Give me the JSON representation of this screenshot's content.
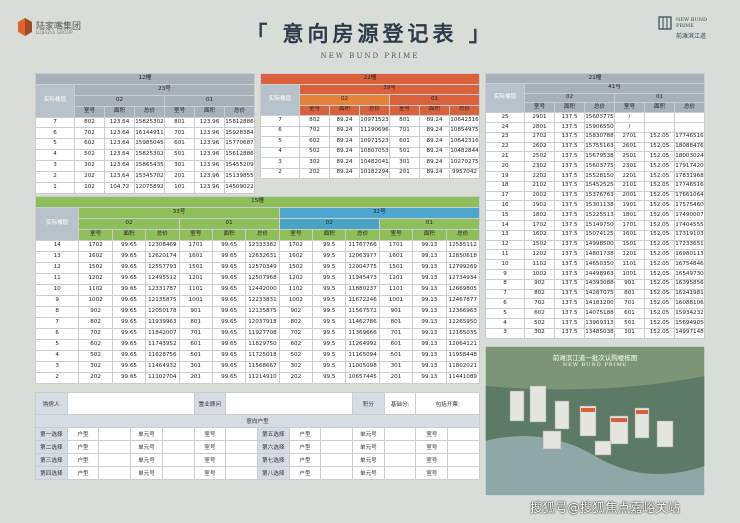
{
  "header": {
    "logo_cn": "陆家嘴集团",
    "logo_en": "LUJIAZUI GROUP",
    "title": "「 意向房源登记表 」",
    "subtitle": "NEW BUND PRIME",
    "brand_en": "NEW BUND PRIME",
    "brand_cn": "前滩滨江道"
  },
  "tables": [
    {
      "building": "12幢",
      "floor_label": "实际楼层",
      "units": [
        {
          "name": "23号",
          "groups": [
            "02",
            "01"
          ]
        }
      ],
      "columns": [
        "室号",
        "面积",
        "总价",
        "室号",
        "面积",
        "总价"
      ],
      "rows": [
        [
          7,
          802,
          123.64,
          15825302,
          801,
          123.96,
          15812886
        ],
        [
          6,
          702,
          123.64,
          16144911,
          701,
          123.96,
          15928384
        ],
        [
          5,
          602,
          123.64,
          15985045,
          601,
          123.96,
          15770687
        ],
        [
          4,
          502,
          123.64,
          15825302,
          501,
          123.96,
          15612886
        ],
        [
          3,
          302,
          123.64,
          15865435,
          301,
          123.96,
          15455209
        ],
        [
          2,
          202,
          123.64,
          15345702,
          201,
          123.96,
          15139855
        ],
        [
          1,
          102,
          104.72,
          12075892,
          101,
          123.96,
          14509022
        ]
      ]
    },
    {
      "building": "22幢",
      "floor_label": "实际楼层",
      "units": [
        {
          "name": "39号",
          "groups": [
            "02",
            "01"
          ]
        }
      ],
      "columns": [
        "室号",
        "面积",
        "总价",
        "室号",
        "面积",
        "总价"
      ],
      "rows": [
        [
          7,
          802,
          89.24,
          10971523,
          801,
          89.24,
          10642316
        ],
        [
          6,
          702,
          89.24,
          11190696,
          701,
          89.24,
          10854975
        ],
        [
          5,
          602,
          89.24,
          10971523,
          601,
          89.24,
          10642316
        ],
        [
          4,
          502,
          89.24,
          10807053,
          501,
          89.24,
          10482844
        ],
        [
          3,
          302,
          89.24,
          10482041,
          301,
          89.24,
          10270275
        ],
        [
          2,
          202,
          89.24,
          10182294,
          201,
          89.24,
          9957042
        ]
      ]
    },
    {
      "building": "15幢",
      "floor_label": "实际楼层",
      "units": [
        {
          "name": "33号",
          "groups": [
            "02",
            "01"
          ]
        },
        {
          "name": "32号",
          "groups": [
            "02",
            "01"
          ]
        }
      ],
      "columns": [
        "室号",
        "面积",
        "总价",
        "室号",
        "面积",
        "总价",
        "室号",
        "面积",
        "总价",
        "室号",
        "面积",
        "总价"
      ],
      "rows": [
        [
          14,
          1702,
          99.65,
          12308469,
          1701,
          99.65,
          12333382,
          1702,
          99.5,
          11767766,
          1701,
          99.13,
          12555112
        ],
        [
          13,
          1602,
          99.65,
          12620174,
          1601,
          99.65,
          12632631,
          1602,
          99.5,
          12063977,
          1601,
          99.13,
          12850618
        ],
        [
          12,
          1502,
          99.65,
          12557793,
          1501,
          99.65,
          12570349,
          1502,
          99.5,
          12004775,
          1501,
          99.13,
          12799269
        ],
        [
          11,
          1202,
          99.65,
          12495512,
          1201,
          99.65,
          12507968,
          1202,
          99.5,
          11945473,
          1201,
          99.13,
          12734934
        ],
        [
          10,
          1102,
          99.65,
          12331787,
          1101,
          99.65,
          12442000,
          1102,
          99.5,
          11880237,
          1101,
          99.13,
          12669805
        ],
        [
          9,
          1002,
          99.65,
          12135875,
          1001,
          99.65,
          12233831,
          1002,
          99.5,
          11672246,
          1001,
          99.13,
          12467877
        ],
        [
          8,
          902,
          99.65,
          12050178,
          901,
          99.65,
          12135875,
          902,
          99.5,
          11567572,
          901,
          99.13,
          12366963
        ],
        [
          7,
          802,
          99.65,
          11939963,
          801,
          99.65,
          12037918,
          802,
          99.5,
          11462786,
          801,
          99.13,
          12265950
        ],
        [
          6,
          702,
          99.65,
          11842007,
          701,
          99.65,
          11927708,
          702,
          99.5,
          11369666,
          701,
          99.13,
          12165035
        ],
        [
          5,
          602,
          99.65,
          11743952,
          601,
          99.65,
          11829750,
          602,
          99.5,
          11264992,
          601,
          99.13,
          12064121
        ],
        [
          4,
          502,
          99.65,
          11628756,
          501,
          99.65,
          11725018,
          502,
          99.5,
          11165094,
          501,
          99.13,
          11958448
        ],
        [
          3,
          302,
          99.65,
          11464932,
          301,
          99.65,
          11568667,
          302,
          99.5,
          11005098,
          301,
          99.13,
          11802021
        ],
        [
          2,
          202,
          99.65,
          11102704,
          201,
          99.65,
          11214910,
          202,
          99.5,
          10657445,
          201,
          99.13,
          11441089
        ]
      ]
    },
    {
      "building": "21幢",
      "floor_label": "实际楼层",
      "units": [
        {
          "name": "41号",
          "groups": [
            "02",
            "01"
          ]
        }
      ],
      "columns": [
        "室号",
        "面积",
        "总价",
        "室号",
        "面积",
        "总价"
      ],
      "rows": [
        [
          25,
          2901,
          137.5,
          15603775,
          "/"
        ],
        [
          24,
          2801,
          137.5,
          15906550,
          "/"
        ],
        [
          23,
          2702,
          137.5,
          15830788,
          2701,
          152.05,
          17746516
        ],
        [
          22,
          2602,
          137.5,
          15755163,
          2601,
          152.05,
          18088476
        ],
        [
          21,
          2502,
          137.5,
          15679538,
          2501,
          152.05,
          18003024
        ],
        [
          20,
          2302,
          137.5,
          15603775,
          2301,
          152.05,
          17917420
        ],
        [
          19,
          2202,
          137.5,
          15528150,
          2201,
          152.05,
          17831968
        ],
        [
          18,
          2102,
          137.5,
          15452525,
          2101,
          152.05,
          17746516
        ],
        [
          17,
          2002,
          137.5,
          15376763,
          2001,
          152.05,
          17661064
        ],
        [
          16,
          1902,
          137.5,
          15301138,
          1901,
          152.05,
          17575460
        ],
        [
          15,
          1802,
          137.5,
          15225513,
          1801,
          152.05,
          17490007
        ],
        [
          14,
          1702,
          137.5,
          15149750,
          1701,
          152.05,
          17404555
        ],
        [
          13,
          1602,
          137.5,
          15074125,
          1601,
          152.05,
          17319103
        ],
        [
          12,
          1502,
          137.5,
          14998500,
          1501,
          152.05,
          17233651
        ],
        [
          11,
          1202,
          137.5,
          14801738,
          1201,
          152.05,
          16980113
        ],
        [
          10,
          1102,
          137.5,
          14650350,
          1101,
          152.05,
          16754846
        ],
        [
          9,
          1002,
          137.5,
          14498963,
          1001,
          152.05,
          16549730
        ],
        [
          8,
          902,
          137.5,
          14393088,
          901,
          152.05,
          16395856
        ],
        [
          7,
          802,
          137.5,
          14287075,
          801,
          152.05,
          16241981
        ],
        [
          6,
          702,
          137.5,
          14181200,
          701,
          152.05,
          16088106
        ],
        [
          5,
          602,
          137.5,
          14075188,
          601,
          152.05,
          15934232
        ],
        [
          4,
          502,
          137.5,
          13969313,
          501,
          152.05,
          15694905
        ],
        [
          3,
          302,
          137.5,
          13485038,
          301,
          152.05,
          14997148
        ]
      ]
    }
  ],
  "form": {
    "buyer": "购房人",
    "consultant": "置业顾问",
    "points": "积分",
    "base_points": "基础分:",
    "invoice": "包括开票:",
    "intent": "意向户型",
    "choices": [
      [
        "第一选择",
        "户型",
        "单元号",
        "室号",
        "第五选择",
        "户型",
        "单元号",
        "室号"
      ],
      [
        "第二选择",
        "户型",
        "单元号",
        "室号",
        "第六选择",
        "户型",
        "单元号",
        "室号"
      ],
      [
        "第三选择",
        "户型",
        "单元号",
        "室号",
        "第七选择",
        "户型",
        "单元号",
        "室号"
      ],
      [
        "第四选择",
        "户型",
        "单元号",
        "室号",
        "第八选择",
        "户型",
        "单元号",
        "室号"
      ]
    ]
  },
  "map": {
    "title": "前滩滨江道一批次认购楼栋图",
    "subtitle": "NEW BUND PRIME"
  },
  "watermark": "搜狐号@搜狐焦点嘉峪关站"
}
